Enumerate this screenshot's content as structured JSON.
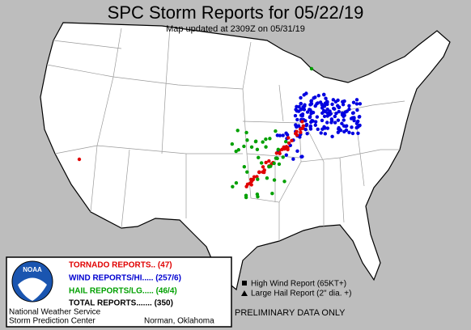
{
  "header": {
    "title": "SPC Storm Reports for 05/22/19",
    "subtitle": "Map updated at 2309Z on 05/31/19"
  },
  "legend": {
    "logo": "NOAA",
    "items": [
      "TORNADO REPORTS.. (47)",
      "WIND REPORTS/HI..... (257/6)",
      "HAIL REPORTS/LG..... (46/4)",
      "TOTAL REPORTS....... (350)"
    ],
    "agency": [
      "National Weather Service",
      "Storm Prediction Center"
    ],
    "location": "Norman, Oklahoma"
  },
  "key": [
    "High Wind Report (65KT+)",
    "Large Hail Report (2\" dia. +)"
  ],
  "note": "PRELIMINARY DATA ONLY"
}
